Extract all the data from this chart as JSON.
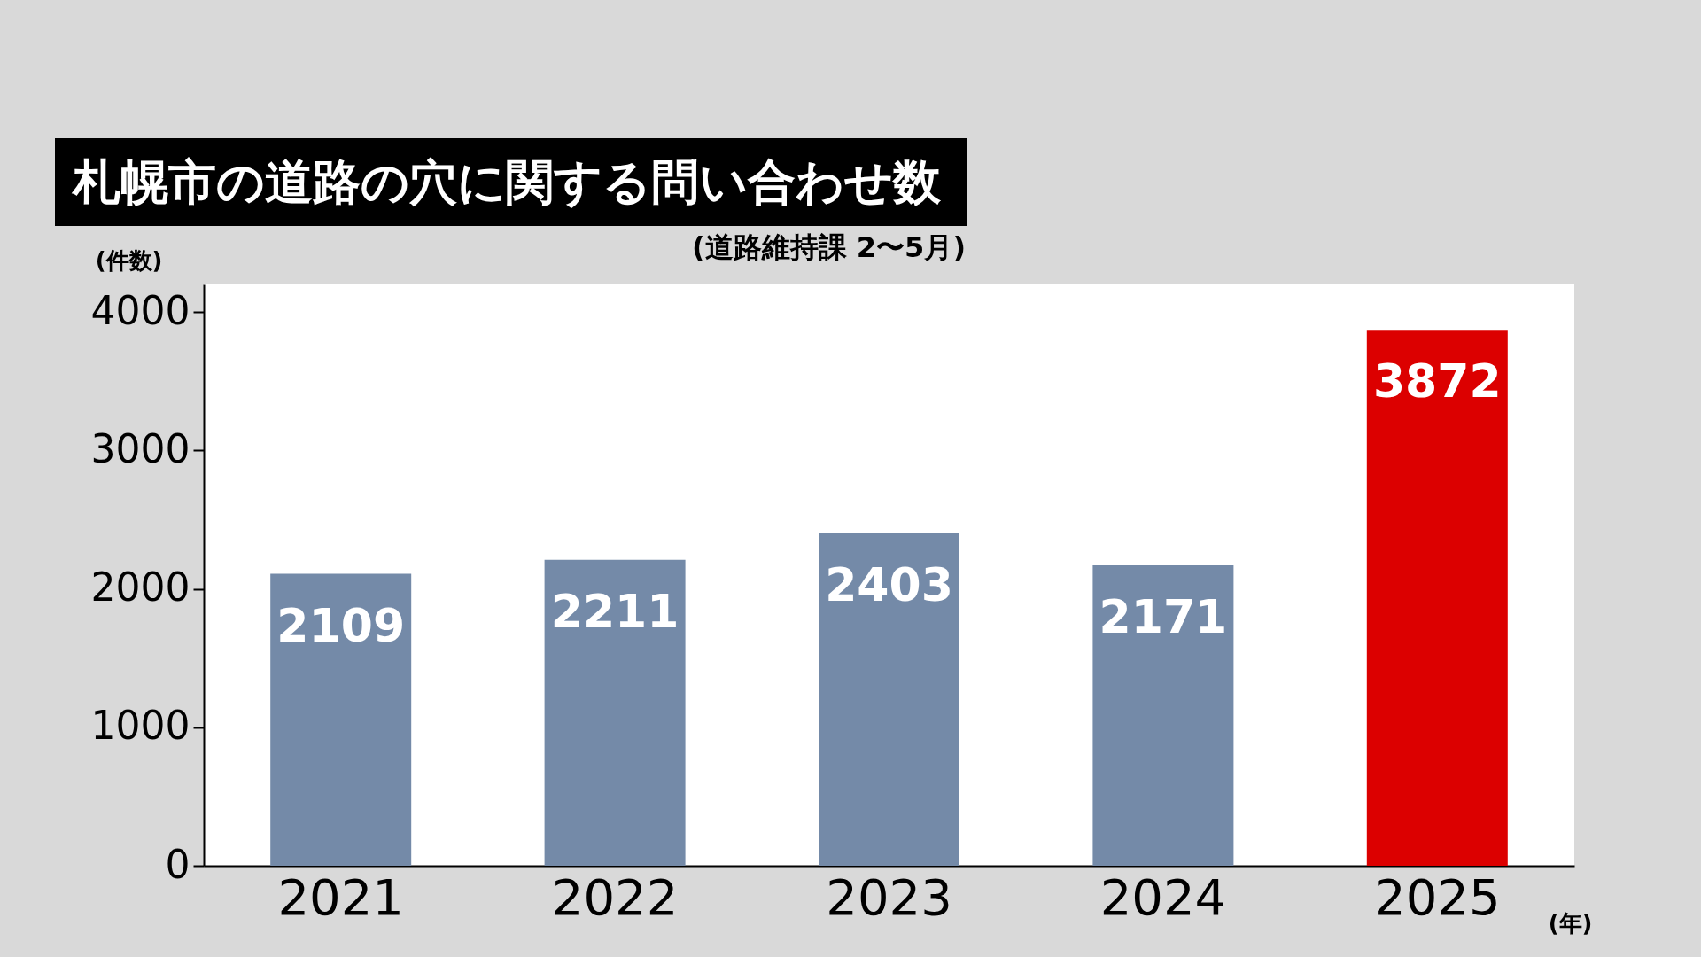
{
  "chart_data": {
    "type": "bar",
    "title": "札幌市の道路の穴に関する問い合わせ数",
    "subtitle": "(道路維持課 2〜5月)",
    "ylabel": "(件数)",
    "xlabel": "(年)",
    "categories": [
      "2021",
      "2022",
      "2023",
      "2024",
      "2025"
    ],
    "values": [
      2109,
      2211,
      2403,
      2171,
      3872
    ],
    "colors": [
      "#748aa8",
      "#748aa8",
      "#748aa8",
      "#748aa8",
      "#dc0000"
    ],
    "ylim": [
      0,
      4200
    ],
    "yticks": [
      0,
      1000,
      2000,
      3000,
      4000
    ],
    "grid": false,
    "data_labels": true
  }
}
